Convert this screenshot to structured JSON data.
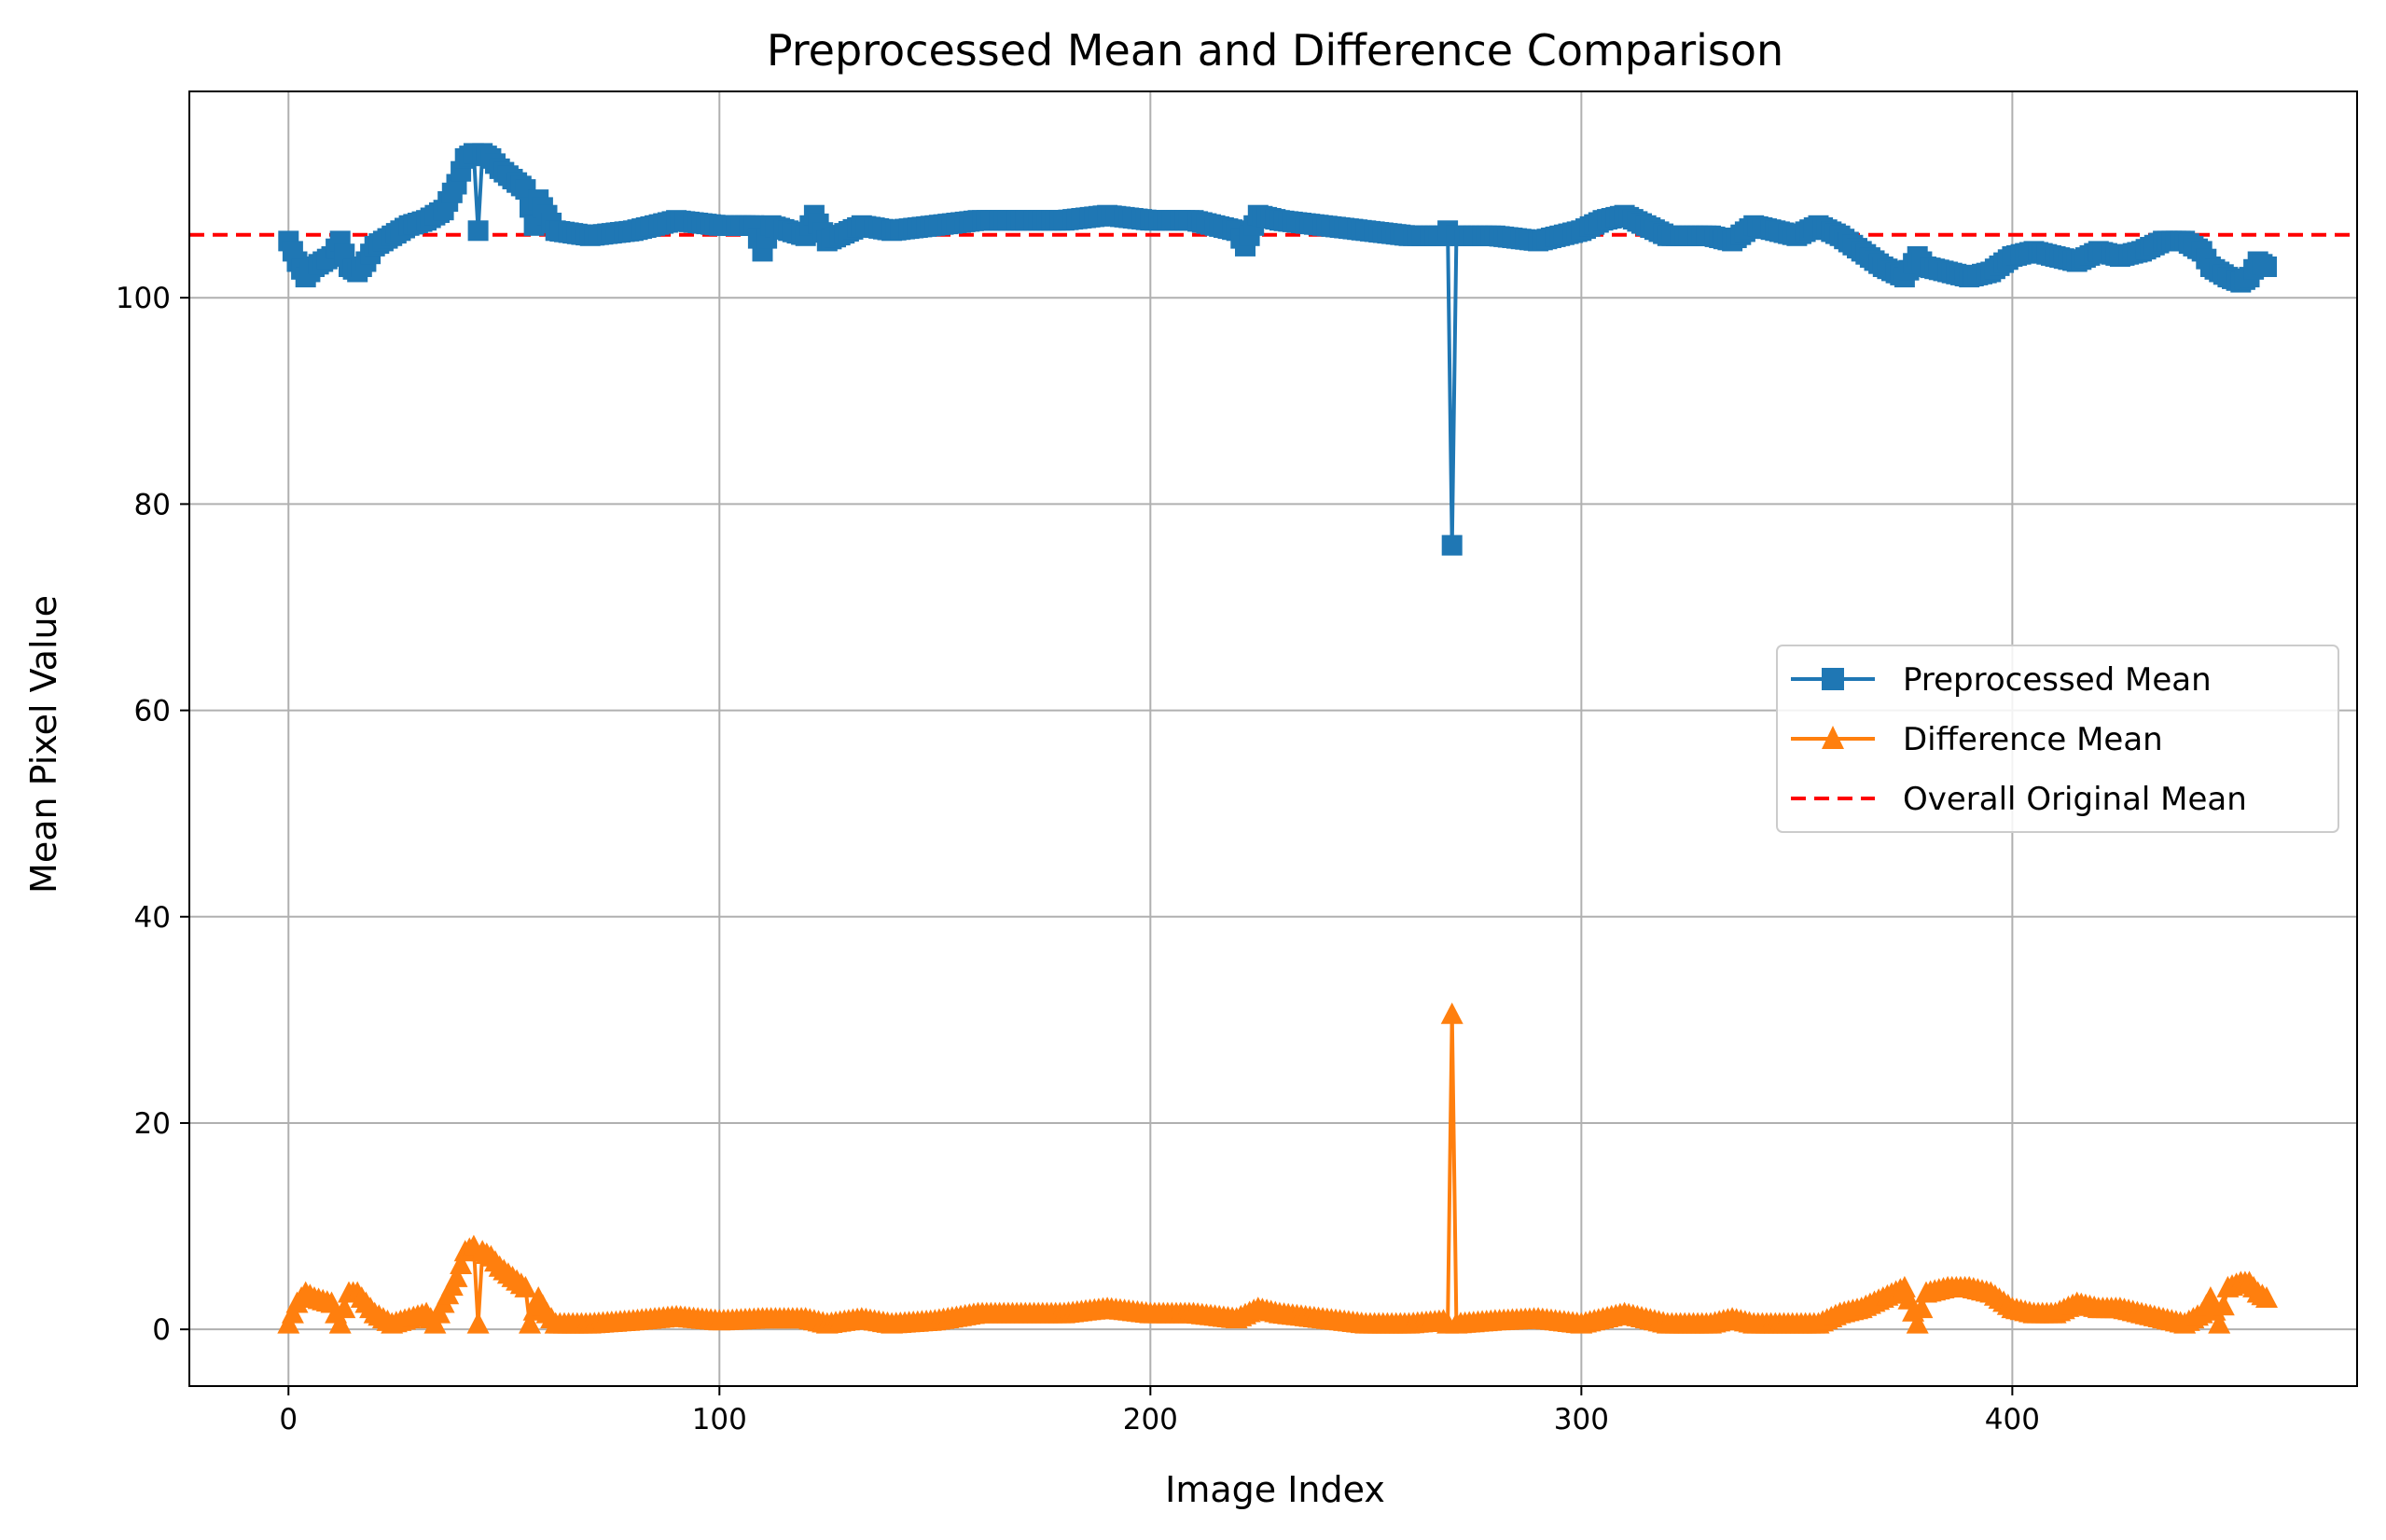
{
  "chart_data": {
    "type": "line",
    "title": "Preprocessed Mean and Difference Comparison",
    "xlabel": "Image Index",
    "ylabel": "Mean Pixel Value",
    "xlim": [
      -23,
      480
    ],
    "ylim": [
      -5.5,
      120
    ],
    "xticks": [
      0,
      100,
      200,
      300,
      400
    ],
    "yticks": [
      0,
      20,
      40,
      60,
      80,
      100
    ],
    "grid": true,
    "legend_position": "center-right",
    "overall_original_mean": 106.1,
    "colors": {
      "preprocessed": "#1f77b4",
      "difference": "#ff7f0e",
      "overall": "#ff0000",
      "grid": "#b0b0b0"
    },
    "legend": [
      {
        "label": "Preprocessed Mean",
        "marker": "square",
        "color": "#1f77b4",
        "style": "solid"
      },
      {
        "label": "Difference Mean",
        "marker": "triangle",
        "color": "#ff7f0e",
        "style": "solid"
      },
      {
        "label": "Overall Original Mean",
        "marker": "none",
        "color": "#ff0000",
        "style": "dashed"
      }
    ],
    "preprocessed_keypoints": [
      [
        0,
        105.5
      ],
      [
        2,
        103.5
      ],
      [
        4,
        102.0
      ],
      [
        6,
        103.0
      ],
      [
        10,
        104.0
      ],
      [
        12,
        105.5
      ],
      [
        14,
        103.0
      ],
      [
        16,
        102.5
      ],
      [
        18,
        103.5
      ],
      [
        20,
        105.0
      ],
      [
        24,
        106.0
      ],
      [
        28,
        107.0
      ],
      [
        32,
        107.5
      ],
      [
        36,
        108.5
      ],
      [
        39,
        111.0
      ],
      [
        41,
        113.5
      ],
      [
        43,
        114.0
      ],
      [
        44,
        106.5
      ],
      [
        45,
        114.0
      ],
      [
        47,
        113.5
      ],
      [
        49,
        112.5
      ],
      [
        52,
        111.5
      ],
      [
        55,
        110.5
      ],
      [
        57,
        107.0
      ],
      [
        58,
        109.5
      ],
      [
        60,
        108.0
      ],
      [
        62,
        106.5
      ],
      [
        70,
        106.0
      ],
      [
        80,
        106.5
      ],
      [
        90,
        107.5
      ],
      [
        100,
        107.0
      ],
      [
        108,
        107.0
      ],
      [
        110,
        104.5
      ],
      [
        112,
        107.0
      ],
      [
        120,
        106.0
      ],
      [
        122,
        108.0
      ],
      [
        125,
        105.5
      ],
      [
        133,
        107.0
      ],
      [
        140,
        106.5
      ],
      [
        150,
        107.0
      ],
      [
        160,
        107.5
      ],
      [
        170,
        107.5
      ],
      [
        180,
        107.5
      ],
      [
        190,
        108.0
      ],
      [
        200,
        107.5
      ],
      [
        210,
        107.5
      ],
      [
        220,
        106.5
      ],
      [
        222,
        105.0
      ],
      [
        225,
        108.0
      ],
      [
        230,
        107.5
      ],
      [
        240,
        107.0
      ],
      [
        250,
        106.5
      ],
      [
        260,
        106.0
      ],
      [
        268,
        106.0
      ],
      [
        269,
        106.5
      ],
      [
        270,
        76.0
      ],
      [
        271,
        106.0
      ],
      [
        280,
        106.0
      ],
      [
        290,
        105.5
      ],
      [
        300,
        106.5
      ],
      [
        305,
        107.5
      ],
      [
        310,
        108.0
      ],
      [
        315,
        107.0
      ],
      [
        320,
        106.0
      ],
      [
        330,
        106.0
      ],
      [
        335,
        105.5
      ],
      [
        340,
        107.0
      ],
      [
        345,
        106.5
      ],
      [
        350,
        106.0
      ],
      [
        355,
        107.0
      ],
      [
        360,
        106.0
      ],
      [
        365,
        104.5
      ],
      [
        370,
        103.0
      ],
      [
        375,
        102.0
      ],
      [
        378,
        104.0
      ],
      [
        380,
        103.0
      ],
      [
        385,
        102.5
      ],
      [
        390,
        102.0
      ],
      [
        395,
        102.5
      ],
      [
        400,
        104.0
      ],
      [
        405,
        104.5
      ],
      [
        410,
        104.0
      ],
      [
        415,
        103.5
      ],
      [
        420,
        104.5
      ],
      [
        425,
        104.0
      ],
      [
        430,
        104.5
      ],
      [
        435,
        105.5
      ],
      [
        440,
        105.5
      ],
      [
        444,
        104.5
      ],
      [
        446,
        103.0
      ],
      [
        450,
        102.0
      ],
      [
        453,
        101.5
      ],
      [
        455,
        102.0
      ],
      [
        457,
        103.5
      ],
      [
        459,
        103.0
      ]
    ],
    "difference_keypoints": [
      [
        0,
        0.5
      ],
      [
        2,
        2.5
      ],
      [
        4,
        3.5
      ],
      [
        6,
        3.0
      ],
      [
        10,
        2.5
      ],
      [
        12,
        0.5
      ],
      [
        14,
        3.5
      ],
      [
        16,
        3.5
      ],
      [
        18,
        2.5
      ],
      [
        20,
        1.5
      ],
      [
        24,
        0.5
      ],
      [
        28,
        1.0
      ],
      [
        32,
        1.5
      ],
      [
        34,
        0.5
      ],
      [
        36,
        2.5
      ],
      [
        39,
        5.0
      ],
      [
        41,
        7.5
      ],
      [
        43,
        8.0
      ],
      [
        44,
        0.5
      ],
      [
        45,
        7.5
      ],
      [
        47,
        7.0
      ],
      [
        49,
        6.0
      ],
      [
        52,
        5.0
      ],
      [
        55,
        4.0
      ],
      [
        56,
        0.5
      ],
      [
        58,
        3.0
      ],
      [
        60,
        1.5
      ],
      [
        62,
        0.5
      ],
      [
        70,
        0.5
      ],
      [
        80,
        0.8
      ],
      [
        90,
        1.2
      ],
      [
        100,
        0.8
      ],
      [
        110,
        1.0
      ],
      [
        120,
        1.0
      ],
      [
        125,
        0.5
      ],
      [
        133,
        1.0
      ],
      [
        140,
        0.5
      ],
      [
        150,
        0.8
      ],
      [
        160,
        1.5
      ],
      [
        170,
        1.5
      ],
      [
        180,
        1.5
      ],
      [
        190,
        2.0
      ],
      [
        200,
        1.5
      ],
      [
        210,
        1.5
      ],
      [
        220,
        1.0
      ],
      [
        225,
        2.0
      ],
      [
        230,
        1.5
      ],
      [
        240,
        1.0
      ],
      [
        250,
        0.5
      ],
      [
        260,
        0.5
      ],
      [
        268,
        0.8
      ],
      [
        269,
        0.5
      ],
      [
        270,
        30.5
      ],
      [
        271,
        0.5
      ],
      [
        280,
        0.8
      ],
      [
        290,
        1.0
      ],
      [
        300,
        0.5
      ],
      [
        305,
        1.0
      ],
      [
        310,
        1.5
      ],
      [
        315,
        1.0
      ],
      [
        320,
        0.5
      ],
      [
        330,
        0.5
      ],
      [
        335,
        1.0
      ],
      [
        340,
        0.5
      ],
      [
        350,
        0.5
      ],
      [
        355,
        0.5
      ],
      [
        360,
        1.5
      ],
      [
        365,
        2.0
      ],
      [
        370,
        3.0
      ],
      [
        375,
        4.0
      ],
      [
        378,
        0.5
      ],
      [
        380,
        3.5
      ],
      [
        385,
        4.0
      ],
      [
        390,
        4.0
      ],
      [
        395,
        3.5
      ],
      [
        400,
        2.0
      ],
      [
        405,
        1.5
      ],
      [
        410,
        1.5
      ],
      [
        415,
        2.5
      ],
      [
        420,
        2.0
      ],
      [
        425,
        2.0
      ],
      [
        430,
        1.5
      ],
      [
        435,
        1.0
      ],
      [
        440,
        0.5
      ],
      [
        444,
        1.5
      ],
      [
        446,
        3.0
      ],
      [
        448,
        0.5
      ],
      [
        450,
        4.0
      ],
      [
        453,
        4.5
      ],
      [
        455,
        4.5
      ],
      [
        457,
        3.5
      ],
      [
        459,
        3.0
      ]
    ]
  }
}
